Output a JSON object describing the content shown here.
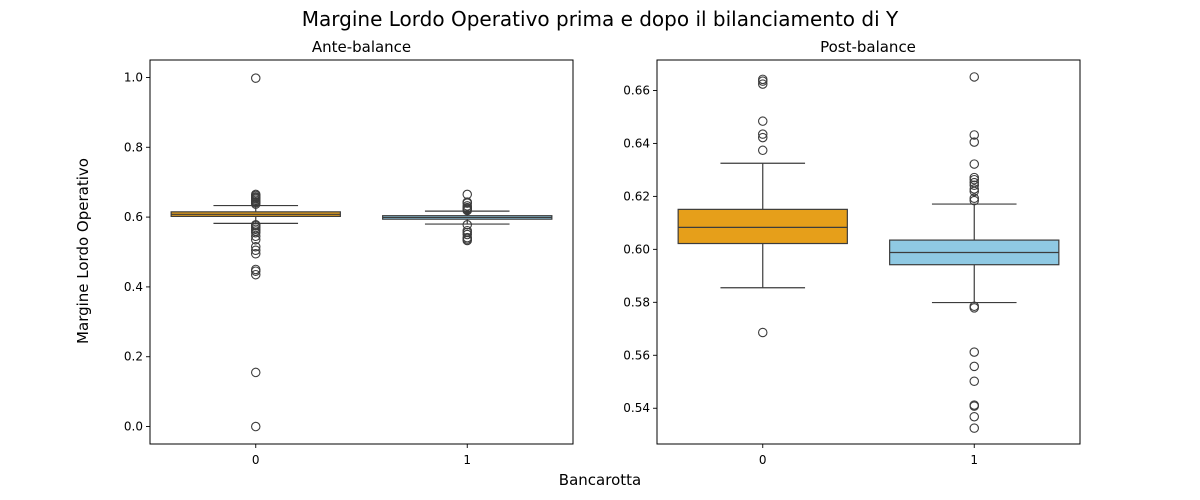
{
  "figure": {
    "title": "Margine Lordo Operativo prima e dopo il bilanciamento di Y",
    "ylabel": "Margine Lordo Operativo",
    "xlabel": "Bancarotta"
  },
  "chart_data": [
    {
      "type": "box",
      "title": "Ante-balance",
      "xlabel": "Bancarotta",
      "ylabel": "Margine Lordo Operativo",
      "categories": [
        "0",
        "1"
      ],
      "ylim": [
        -0.05,
        1.05
      ],
      "yticks": [
        0.0,
        0.2,
        0.4,
        0.6,
        0.8,
        1.0
      ],
      "ytick_labels": [
        "0.0",
        "0.2",
        "0.4",
        "0.6",
        "0.8",
        "1.0"
      ],
      "grid": false,
      "boxes": [
        {
          "category": "0",
          "color": "#E69F1A",
          "whisker_low": 0.582,
          "q1": 0.602,
          "median": 0.608,
          "q3": 0.615,
          "whisker_high": 0.633,
          "outliers": [
            0.0,
            0.155,
            0.435,
            0.445,
            0.45,
            0.495,
            0.505,
            0.515,
            0.535,
            0.545,
            0.555,
            0.56,
            0.565,
            0.57,
            0.575,
            0.578,
            0.637,
            0.641,
            0.644,
            0.648,
            0.652,
            0.655,
            0.658,
            0.662,
            0.665,
            0.998
          ]
        },
        {
          "category": "1",
          "color": "#8FC9E3",
          "whisker_low": 0.58,
          "q1": 0.594,
          "median": 0.599,
          "q3": 0.604,
          "whisker_high": 0.617,
          "outliers": [
            0.533,
            0.537,
            0.541,
            0.55,
            0.556,
            0.561,
            0.578,
            0.619,
            0.622,
            0.625,
            0.627,
            0.632,
            0.64,
            0.643,
            0.665
          ]
        }
      ]
    },
    {
      "type": "box",
      "title": "Post-balance",
      "xlabel": "Bancarotta",
      "ylabel": "Margine Lordo Operativo",
      "categories": [
        "0",
        "1"
      ],
      "ylim": [
        0.5265,
        0.6715
      ],
      "yticks": [
        0.54,
        0.56,
        0.58,
        0.6,
        0.62,
        0.64,
        0.66
      ],
      "ytick_labels": [
        "0.54",
        "0.56",
        "0.58",
        "0.60",
        "0.62",
        "0.64",
        "0.66"
      ],
      "grid": false,
      "boxes": [
        {
          "category": "0",
          "color": "#E69F1A",
          "whisker_low": 0.5855,
          "q1": 0.6022,
          "median": 0.6083,
          "q3": 0.6151,
          "whisker_high": 0.6325,
          "outliers": [
            0.5686,
            0.6374,
            0.6422,
            0.6435,
            0.6484,
            0.6624,
            0.6635,
            0.6642
          ]
        },
        {
          "category": "1",
          "color": "#8FC9E3",
          "whisker_low": 0.5799,
          "q1": 0.5942,
          "median": 0.5988,
          "q3": 0.6035,
          "whisker_high": 0.6171,
          "outliers": [
            0.5325,
            0.5368,
            0.5408,
            0.5412,
            0.5502,
            0.5558,
            0.5612,
            0.5779,
            0.5785,
            0.6184,
            0.6193,
            0.6219,
            0.6228,
            0.6242,
            0.6252,
            0.6263,
            0.6271,
            0.6322,
            0.6405,
            0.6432,
            0.6651
          ]
        }
      ]
    }
  ]
}
